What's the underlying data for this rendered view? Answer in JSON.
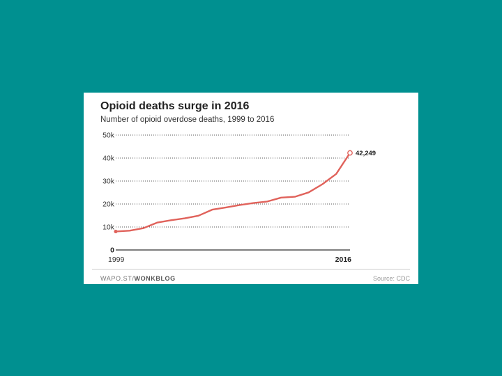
{
  "colors": {
    "background": "#009090",
    "card": "#ffffff",
    "line": "#e0625b"
  },
  "chart_data": {
    "type": "line",
    "title": "Opioid deaths surge in 2016",
    "subtitle": "Number of opioid overdose deaths, 1999 to 2016",
    "xlabel": "",
    "ylabel": "",
    "x": [
      1999,
      2000,
      2001,
      2002,
      2003,
      2004,
      2005,
      2006,
      2007,
      2008,
      2009,
      2010,
      2011,
      2012,
      2013,
      2014,
      2015,
      2016
    ],
    "series": [
      {
        "name": "Opioid overdose deaths",
        "values": [
          8050,
          8407,
          9496,
          11920,
          12940,
          13756,
          14918,
          17545,
          18516,
          19582,
          20422,
          21089,
          22784,
          23166,
          25052,
          28647,
          33091,
          42249
        ]
      }
    ],
    "ylim": [
      0,
      50000
    ],
    "yticks": [
      0,
      10000,
      20000,
      30000,
      40000,
      50000
    ],
    "ytick_labels": [
      "0",
      "10k",
      "20k",
      "30k",
      "40k",
      "50k"
    ],
    "xtick_labels": [
      "1999",
      "2016"
    ],
    "end_label": "42,249",
    "grid": true
  },
  "footer": {
    "source_prefix": "WAPO.ST/",
    "source_brand": "WONKBLOG",
    "credit": "Source: CDC"
  }
}
